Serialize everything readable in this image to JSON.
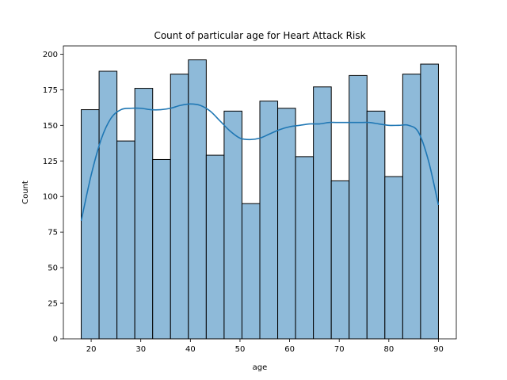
{
  "chart_data": {
    "type": "bar",
    "title": "Count of particular age for Heart Attack Risk",
    "xlabel": "age",
    "ylabel": "Count",
    "bin_start": 18,
    "bin_width": 3.6,
    "values": [
      161,
      188,
      139,
      176,
      126,
      186,
      196,
      129,
      160,
      95,
      167,
      162,
      128,
      177,
      111,
      185,
      160,
      114,
      186,
      193
    ],
    "xlim": [
      14.4,
      93.6
    ],
    "ylim": [
      0,
      205.8
    ],
    "xticks": [
      20,
      30,
      40,
      50,
      60,
      70,
      80,
      90
    ],
    "yticks": [
      0,
      25,
      50,
      75,
      100,
      125,
      150,
      175,
      200
    ],
    "kde": {
      "x": [
        18,
        20,
        22,
        24,
        26,
        28,
        30,
        32,
        34,
        36,
        38,
        40,
        42,
        44,
        46,
        48,
        50,
        52,
        54,
        56,
        58,
        60,
        62,
        64,
        66,
        68,
        70,
        72,
        74,
        76,
        78,
        80,
        82,
        84,
        86,
        88,
        90
      ],
      "y": [
        83,
        115,
        140,
        155,
        161,
        162,
        162,
        161,
        161,
        162,
        164,
        165,
        164,
        160,
        153,
        146,
        141,
        140,
        141,
        144,
        147,
        149,
        150,
        151,
        151,
        152,
        152,
        152,
        152,
        152,
        151,
        150,
        150,
        150,
        145,
        125,
        94
      ]
    },
    "bar_color": "#8ebad9",
    "bar_edge": "#000000",
    "line_color": "#1f77b4",
    "grid": false,
    "legend": "none"
  }
}
